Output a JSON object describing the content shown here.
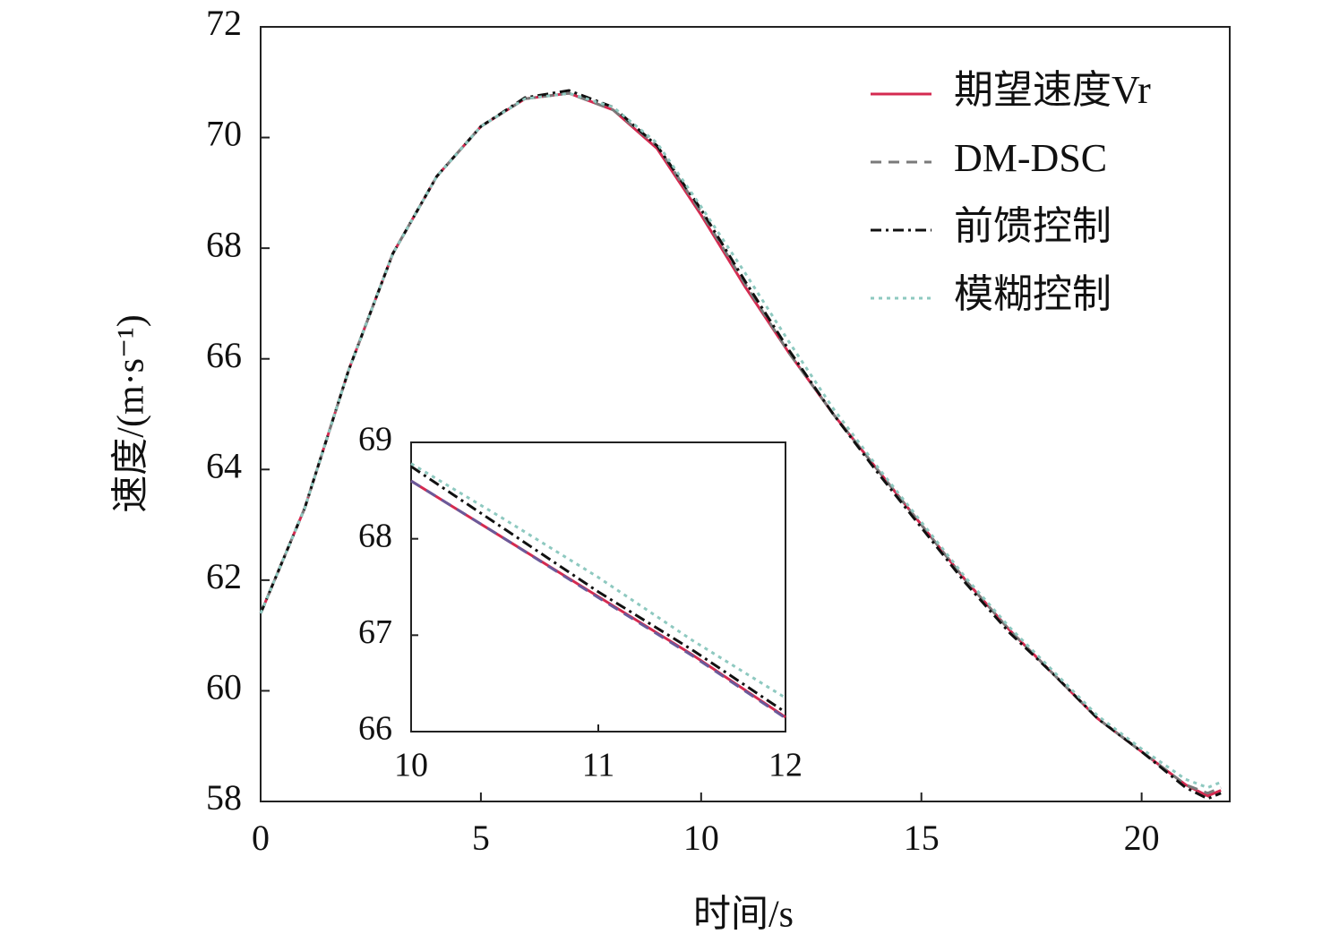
{
  "chart_data": [
    {
      "type": "line",
      "x_label": "时间/s",
      "y_label": "速度/(m·s⁻¹)",
      "xlim": [
        0,
        22
      ],
      "ylim": [
        58,
        72
      ],
      "xticks": [
        0,
        5,
        10,
        15,
        20
      ],
      "yticks": [
        58,
        60,
        62,
        64,
        66,
        68,
        70,
        72
      ],
      "legend": "upper right",
      "x": [
        0,
        1,
        2,
        3,
        4,
        5,
        6,
        7,
        8,
        9,
        10,
        11,
        12,
        13,
        14,
        15,
        16,
        17,
        18,
        19,
        20,
        21,
        21.5,
        21.8
      ],
      "series": [
        {
          "name": "期望速度Vr",
          "color": "#d42a50",
          "values": [
            61.4,
            63.3,
            65.8,
            67.9,
            69.3,
            70.2,
            70.7,
            70.8,
            70.5,
            69.8,
            68.6,
            67.3,
            66.1,
            65.0,
            64.0,
            63.0,
            62.0,
            61.1,
            60.3,
            59.5,
            58.9,
            58.3,
            58.1,
            58.2
          ]
        },
        {
          "name": "DM-DSC",
          "color": "#7a7a7a",
          "values": [
            61.4,
            63.3,
            65.8,
            67.9,
            69.3,
            70.2,
            70.7,
            70.8,
            70.5,
            69.85,
            68.65,
            67.35,
            66.1,
            65.0,
            64.0,
            63.0,
            62.0,
            61.1,
            60.3,
            59.5,
            58.9,
            58.3,
            58.15,
            58.25
          ]
        },
        {
          "name": "前馈控制",
          "color": "#111111",
          "values": [
            61.4,
            63.3,
            65.8,
            67.9,
            69.3,
            70.2,
            70.72,
            70.85,
            70.55,
            69.85,
            68.7,
            67.4,
            66.15,
            65.0,
            63.95,
            62.95,
            61.95,
            61.05,
            60.3,
            59.5,
            58.9,
            58.25,
            58.05,
            58.15
          ]
        },
        {
          "name": "模糊控制",
          "color": "#8ec9c0",
          "values": [
            61.4,
            63.3,
            65.8,
            67.9,
            69.3,
            70.2,
            70.7,
            70.8,
            70.55,
            69.9,
            68.75,
            67.55,
            66.3,
            65.1,
            64.05,
            63.05,
            62.05,
            61.15,
            60.35,
            59.55,
            58.95,
            58.4,
            58.25,
            58.35
          ]
        }
      ]
    },
    {
      "type": "line",
      "xlim": [
        10,
        12
      ],
      "ylim": [
        66,
        69
      ],
      "xticks": [
        10,
        11,
        12
      ],
      "yticks": [
        66,
        67,
        68,
        69
      ],
      "x": [
        10,
        10.5,
        11,
        11.5,
        12
      ],
      "series": [
        {
          "color": "#d42a50",
          "values": [
            68.6,
            68.0,
            67.4,
            66.8,
            66.15
          ]
        },
        {
          "color": "#6a5a9a",
          "values": [
            68.6,
            68.0,
            67.39,
            66.79,
            66.14
          ]
        },
        {
          "color": "#111111",
          "values": [
            68.75,
            68.1,
            67.45,
            66.85,
            66.2
          ]
        },
        {
          "color": "#8ec9c0",
          "values": [
            68.78,
            68.2,
            67.6,
            66.95,
            66.35
          ]
        }
      ]
    }
  ]
}
